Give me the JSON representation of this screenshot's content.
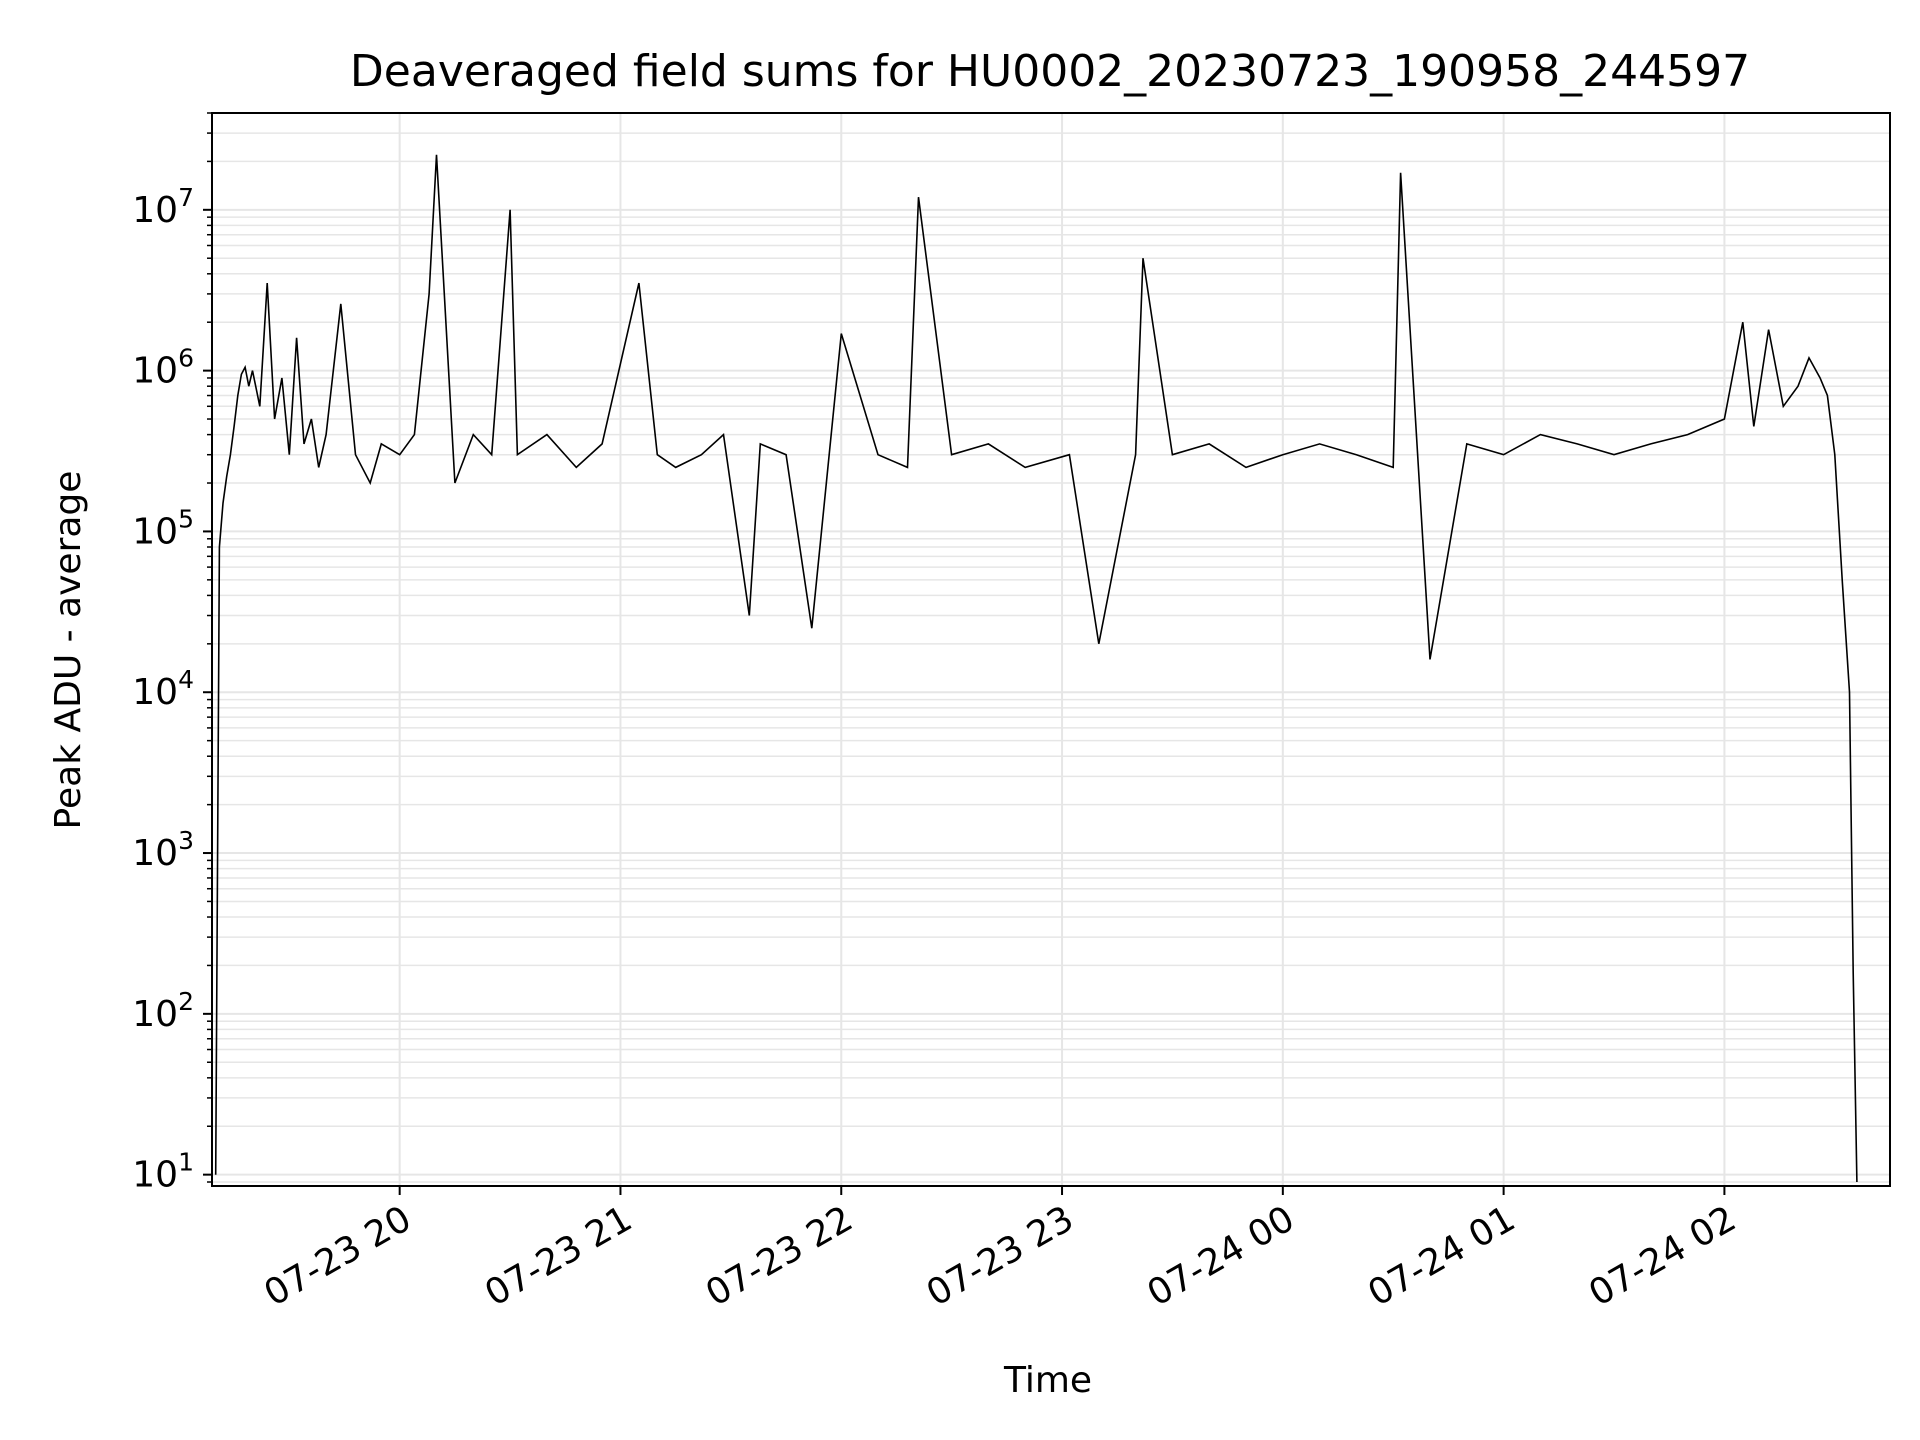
{
  "chart_data": {
    "type": "line",
    "title": "Deaveraged field sums for HU0002_20230723_190958_244597",
    "xlabel": "Time",
    "ylabel": "Peak ADU - average",
    "y_scale": "log",
    "ylim": [
      8.5,
      40000000
    ],
    "xlim": [
      "2023-07-23 19:09",
      "2023-07-24 02:45"
    ],
    "x_ticks": [
      {
        "value": "2023-07-23 20:00",
        "label": "07-23 20"
      },
      {
        "value": "2023-07-23 21:00",
        "label": "07-23 21"
      },
      {
        "value": "2023-07-23 22:00",
        "label": "07-23 22"
      },
      {
        "value": "2023-07-23 23:00",
        "label": "07-23 23"
      },
      {
        "value": "2023-07-24 00:00",
        "label": "07-24 00"
      },
      {
        "value": "2023-07-24 01:00",
        "label": "07-24 01"
      },
      {
        "value": "2023-07-24 02:00",
        "label": "07-24 02"
      }
    ],
    "y_ticks": [
      {
        "value": 10,
        "base": "10",
        "exp": "1"
      },
      {
        "value": 100,
        "base": "10",
        "exp": "2"
      },
      {
        "value": 1000,
        "base": "10",
        "exp": "3"
      },
      {
        "value": 10000,
        "base": "10",
        "exp": "4"
      },
      {
        "value": 100000,
        "base": "10",
        "exp": "5"
      },
      {
        "value": 1000000,
        "base": "10",
        "exp": "6"
      },
      {
        "value": 10000000,
        "base": "10",
        "exp": "7"
      }
    ],
    "grid": true,
    "line_color": "#000000",
    "grid_color": "#e6e6e6",
    "series": [
      {
        "x": [
          "2023-07-23 19:10",
          "2023-07-23 19:11",
          "2023-07-23 19:12",
          "2023-07-23 19:13",
          "2023-07-23 19:14",
          "2023-07-23 19:15",
          "2023-07-23 19:16",
          "2023-07-23 19:17",
          "2023-07-23 19:18",
          "2023-07-23 19:19",
          "2023-07-23 19:20",
          "2023-07-23 19:22",
          "2023-07-23 19:24",
          "2023-07-23 19:26",
          "2023-07-23 19:28",
          "2023-07-23 19:30",
          "2023-07-23 19:32",
          "2023-07-23 19:34",
          "2023-07-23 19:36",
          "2023-07-23 19:38",
          "2023-07-23 19:40",
          "2023-07-23 19:44",
          "2023-07-23 19:48",
          "2023-07-23 19:52",
          "2023-07-23 19:55",
          "2023-07-23 20:00",
          "2023-07-23 20:04",
          "2023-07-23 20:08",
          "2023-07-23 20:10",
          "2023-07-23 20:15",
          "2023-07-23 20:20",
          "2023-07-23 20:25",
          "2023-07-23 20:30",
          "2023-07-23 20:32",
          "2023-07-23 20:40",
          "2023-07-23 20:48",
          "2023-07-23 20:55",
          "2023-07-23 21:05",
          "2023-07-23 21:10",
          "2023-07-23 21:15",
          "2023-07-23 21:22",
          "2023-07-23 21:28",
          "2023-07-23 21:35",
          "2023-07-23 21:38",
          "2023-07-23 21:45",
          "2023-07-23 21:52",
          "2023-07-23 22:00",
          "2023-07-23 22:10",
          "2023-07-23 22:18",
          "2023-07-23 22:21",
          "2023-07-23 22:30",
          "2023-07-23 22:40",
          "2023-07-23 22:50",
          "2023-07-23 23:02",
          "2023-07-23 23:10",
          "2023-07-23 23:20",
          "2023-07-23 23:22",
          "2023-07-23 23:30",
          "2023-07-23 23:40",
          "2023-07-23 23:50",
          "2023-07-24 00:00",
          "2023-07-24 00:10",
          "2023-07-24 00:20",
          "2023-07-24 00:30",
          "2023-07-24 00:32",
          "2023-07-24 00:40",
          "2023-07-24 00:50",
          "2023-07-24 01:00",
          "2023-07-24 01:10",
          "2023-07-24 01:20",
          "2023-07-24 01:30",
          "2023-07-24 01:40",
          "2023-07-24 01:50",
          "2023-07-24 02:00",
          "2023-07-24 02:05",
          "2023-07-24 02:08",
          "2023-07-24 02:12",
          "2023-07-24 02:16",
          "2023-07-24 02:20",
          "2023-07-24 02:23",
          "2023-07-24 02:26",
          "2023-07-24 02:28",
          "2023-07-24 02:30",
          "2023-07-24 02:32",
          "2023-07-24 02:34",
          "2023-07-24 02:35",
          "2023-07-24 02:36"
        ],
        "values": [
          10,
          80000,
          150000,
          220000,
          300000,
          450000,
          700000,
          950000,
          1050000,
          800000,
          1000000,
          600000,
          3500000,
          500000,
          900000,
          300000,
          1600000,
          350000,
          500000,
          250000,
          400000,
          2600000,
          300000,
          200000,
          350000,
          300000,
          400000,
          3000000,
          22000000,
          200000,
          400000,
          300000,
          10000000,
          300000,
          400000,
          250000,
          350000,
          3500000,
          300000,
          250000,
          300000,
          400000,
          30000,
          350000,
          300000,
          25000,
          1700000,
          300000,
          250000,
          12000000,
          300000,
          350000,
          250000,
          300000,
          20000,
          300000,
          5000000,
          300000,
          350000,
          250000,
          300000,
          350000,
          300000,
          250000,
          17000000,
          16000,
          350000,
          300000,
          400000,
          350000,
          300000,
          350000,
          400000,
          500000,
          2000000,
          450000,
          1800000,
          600000,
          800000,
          1200000,
          900000,
          700000,
          300000,
          50000,
          10000,
          180,
          9
        ]
      }
    ]
  }
}
